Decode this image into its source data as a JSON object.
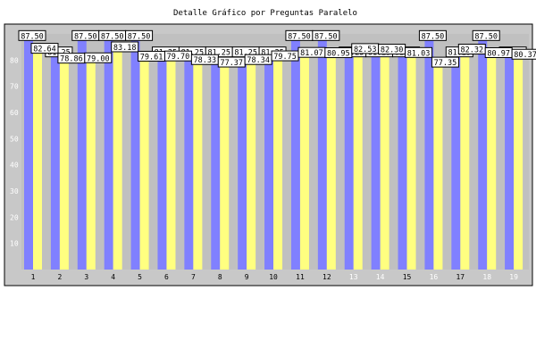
{
  "chart_data": {
    "type": "bar",
    "title": "Detalle Gráfico por Preguntas Paralelo",
    "xlabel": "",
    "ylabel": "",
    "ylim": [
      0,
      90
    ],
    "yticks": [
      "10",
      "20",
      "30",
      "40",
      "50",
      "60",
      "70",
      "80"
    ],
    "categories": [
      "1",
      "2",
      "3",
      "4",
      "5",
      "6",
      "7",
      "8",
      "9",
      "10",
      "11",
      "12",
      "13",
      "14",
      "15",
      "16",
      "17",
      "18",
      "19"
    ],
    "series": [
      {
        "color": "#8080ff",
        "values": [
          87.5,
          81.25,
          87.5,
          87.5,
          87.5,
          81.25,
          81.25,
          81.25,
          81.25,
          81.25,
          87.5,
          87.5,
          81.25,
          81.25,
          81.25,
          87.5,
          81.25,
          87.5,
          81.25
        ]
      },
      {
        "color": "#ffff80",
        "values": [
          82.64,
          78.86,
          79.0,
          83.18,
          79.61,
          79.7,
          78.33,
          77.37,
          78.34,
          79.75,
          81.07,
          80.95,
          82.53,
          82.3,
          81.03,
          77.35,
          82.32,
          80.97,
          80.37
        ]
      }
    ],
    "data_labels": [
      [
        "87.50",
        "81.25",
        "87.50",
        "87.50",
        "87.50",
        "81.25",
        "81.25",
        "81.25",
        "81.25",
        "81.25",
        "87.50",
        "87.50",
        "81.25",
        "81.25",
        "81.25",
        "87.50",
        "81.25",
        "87.50",
        "81.25"
      ],
      [
        "82.64",
        "78.86",
        "79.00",
        "83.18",
        "79.61",
        "79.70",
        "78.33",
        "77.37",
        "78.34",
        "79.75",
        "81.07",
        "80.95",
        "82.53",
        "82.30",
        "81.03",
        "77.35",
        "82.32",
        "80.97",
        "80.37"
      ]
    ],
    "light_tick_categories": [
      "13",
      "14",
      "16",
      "18",
      "19"
    ],
    "grid": false,
    "legend": "none",
    "plot_background": "#c0c0c0",
    "frame_background": "#c8c8c8"
  }
}
